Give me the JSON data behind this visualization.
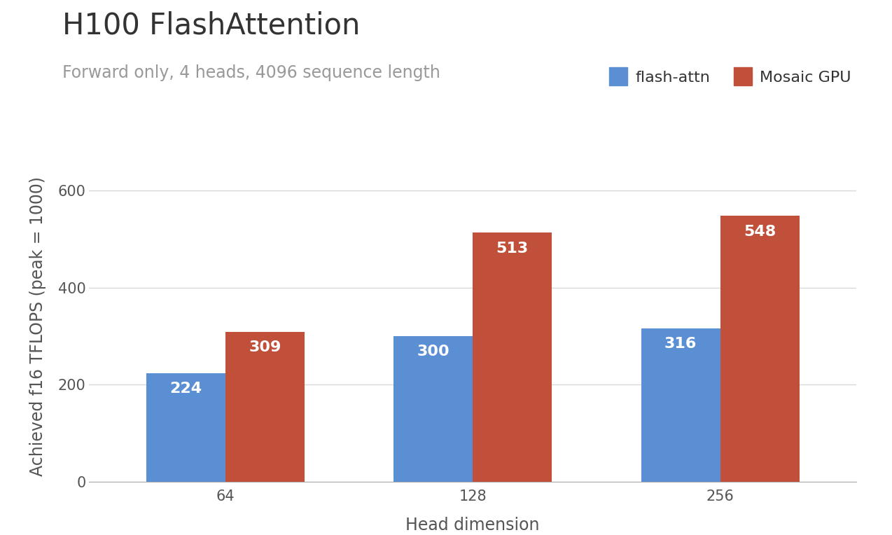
{
  "title": "H100 FlashAttention",
  "subtitle": "Forward only, 4 heads, 4096 sequence length",
  "xlabel": "Head dimension",
  "ylabel": "Achieved f16 TFLOPS (peak = 1000)",
  "categories": [
    "64",
    "128",
    "256"
  ],
  "flash_attn_values": [
    224,
    300,
    316
  ],
  "mosaic_gpu_values": [
    309,
    513,
    548
  ],
  "flash_attn_color": "#5B8FD4",
  "mosaic_gpu_color": "#C0503A",
  "background_color": "#FFFFFF",
  "grid_color": "#D8D8D8",
  "ylim": [
    0,
    640
  ],
  "yticks": [
    0,
    200,
    400,
    600
  ],
  "bar_width": 0.32,
  "title_fontsize": 30,
  "subtitle_fontsize": 17,
  "subtitle_color": "#999999",
  "title_color": "#333333",
  "axis_label_fontsize": 17,
  "tick_fontsize": 15,
  "legend_fontsize": 16,
  "bar_label_fontsize": 16,
  "bar_label_color": "#FFFFFF",
  "legend_labels": [
    "flash-attn",
    "Mosaic GPU"
  ],
  "legend_text_color": "#333333"
}
